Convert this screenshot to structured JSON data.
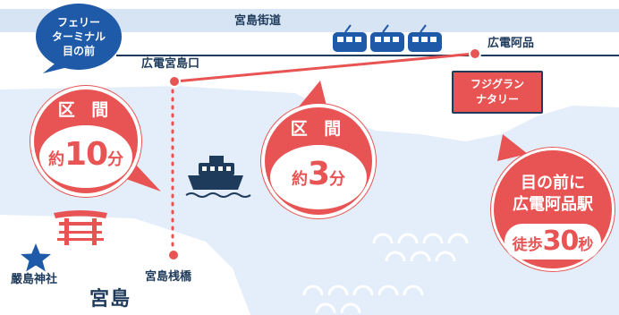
{
  "colors": {
    "sea": "#e4eefa",
    "land": "#ffffff",
    "road": "#d6e4f4",
    "route": "#e85454",
    "navy": "#1f3b5c",
    "blue": "#1e5aa8"
  },
  "icons": [
    "ferry-icon",
    "train-icon",
    "torii-icon",
    "star-icon",
    "wave-icon"
  ],
  "map": {
    "road_label": "宮島街道",
    "island_label": "宮島",
    "places": {
      "miyajimaguchi": "広電宮島口",
      "hiroden_ajina": "広電阿品",
      "pier": "宮島桟橋",
      "shrine": "嚴島神社"
    },
    "ferry_terminal": [
      "フェリー",
      "ターミナル",
      "目の前"
    ],
    "station_tag": [
      "フジグラン",
      "ナタリー"
    ]
  },
  "bubbles": {
    "ferry": {
      "head": "区 間",
      "prefix": "約",
      "number": "10",
      "unit": "分"
    },
    "train": {
      "head": "区 間",
      "prefix": "約",
      "number": "3",
      "unit": "分"
    },
    "walk": {
      "line1": "目の前に",
      "line2": "広電阿品駅",
      "prefix": "徒歩",
      "number": "30",
      "unit": "秒"
    }
  }
}
